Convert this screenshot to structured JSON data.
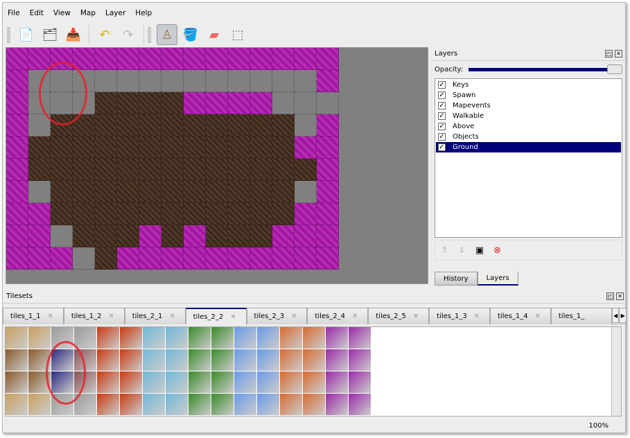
{
  "menu": [
    "File",
    "Edit",
    "View",
    "Map",
    "Layer",
    "Help"
  ],
  "toolbar": [
    {
      "name": "new-file-icon",
      "glyph": "📄"
    },
    {
      "name": "open-file-icon",
      "glyph": "🗂"
    },
    {
      "name": "save-icon",
      "glyph": "📥"
    },
    {
      "name": "undo-icon",
      "glyph": "↶"
    },
    {
      "name": "redo-icon",
      "glyph": "↷"
    },
    {
      "name": "stamp-brush-icon",
      "glyph": "♙"
    },
    {
      "name": "bucket-fill-icon",
      "glyph": "🪣"
    },
    {
      "name": "eraser-icon",
      "glyph": "▰"
    },
    {
      "name": "rectangle-select-icon",
      "glyph": "⬚"
    }
  ],
  "layers_panel": {
    "title": "Layers",
    "opacity_label": "Opacity:",
    "opacity": 1.0,
    "layers": [
      {
        "name": "Keys",
        "visible": true
      },
      {
        "name": "Spawn",
        "visible": true
      },
      {
        "name": "Mapevents",
        "visible": true
      },
      {
        "name": "Walkable",
        "visible": true
      },
      {
        "name": "Above",
        "visible": true
      },
      {
        "name": "Objects",
        "visible": true
      },
      {
        "name": "Ground",
        "visible": true,
        "selected": true
      }
    ],
    "tabs": [
      "History",
      "Layers"
    ],
    "active_tab": "Layers"
  },
  "tilesets_panel": {
    "title": "Tilesets",
    "tabs": [
      "tiles_1_1",
      "tiles_1_2",
      "tiles_2_1",
      "tiles_2_2",
      "tiles_2_3",
      "tiles_2_4",
      "tiles_2_5",
      "tiles_1_3",
      "tiles_1_4",
      "tiles_1_"
    ],
    "active_tab": "tiles_2_2"
  },
  "status": {
    "zoom": "100%"
  },
  "colors": {
    "selection": "#00007a",
    "magenta": "#a0169f",
    "ground": "#3b281c"
  }
}
